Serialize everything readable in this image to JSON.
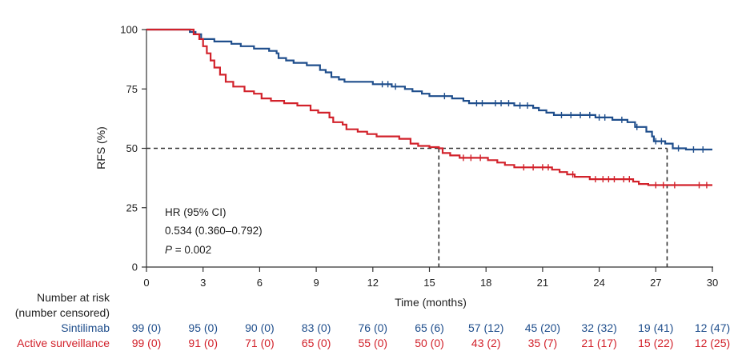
{
  "chart_data": {
    "type": "line",
    "subtype": "kaplan-meier",
    "title": "",
    "xlabel": "Time (months)",
    "ylabel": "RFS (%)",
    "xlim": [
      0,
      30
    ],
    "ylim": [
      0,
      100
    ],
    "xticks": [
      0,
      3,
      6,
      9,
      12,
      15,
      18,
      21,
      24,
      27,
      30
    ],
    "yticks": [
      0,
      25,
      50,
      75,
      100
    ],
    "grid": false,
    "median_reference_line": {
      "y": 50,
      "x": [
        15.5,
        27.6
      ]
    },
    "series": [
      {
        "name": "Sintilimab",
        "color": "#1f4e8c",
        "steps": [
          [
            0,
            100
          ],
          [
            2.0,
            100
          ],
          [
            2.3,
            99
          ],
          [
            2.6,
            98
          ],
          [
            2.9,
            96
          ],
          [
            3.6,
            95
          ],
          [
            4.5,
            94
          ],
          [
            5.0,
            93
          ],
          [
            5.7,
            92
          ],
          [
            6.5,
            91
          ],
          [
            6.9,
            90
          ],
          [
            7.0,
            88
          ],
          [
            7.4,
            87
          ],
          [
            7.8,
            86
          ],
          [
            8.5,
            85
          ],
          [
            9.2,
            83
          ],
          [
            9.5,
            82
          ],
          [
            9.8,
            80
          ],
          [
            10.2,
            79
          ],
          [
            10.5,
            78
          ],
          [
            12.0,
            77
          ],
          [
            13.0,
            76
          ],
          [
            13.7,
            75
          ],
          [
            14.1,
            74
          ],
          [
            14.6,
            73
          ],
          [
            15.0,
            72
          ],
          [
            16.2,
            71
          ],
          [
            16.8,
            70
          ],
          [
            17.1,
            69
          ],
          [
            19.5,
            68
          ],
          [
            20.5,
            67
          ],
          [
            20.8,
            66
          ],
          [
            21.2,
            65
          ],
          [
            21.6,
            64
          ],
          [
            23.8,
            63
          ],
          [
            24.7,
            62
          ],
          [
            25.5,
            61
          ],
          [
            25.9,
            59
          ],
          [
            26.5,
            57
          ],
          [
            26.8,
            55
          ],
          [
            26.9,
            53
          ],
          [
            27.5,
            52
          ],
          [
            27.9,
            50
          ],
          [
            28.6,
            49.5
          ],
          [
            30,
            49.5
          ]
        ],
        "censor_times": [
          12.5,
          12.8,
          13.2,
          15.8,
          17.5,
          17.8,
          18.5,
          18.8,
          19.2,
          19.8,
          20.2,
          22.0,
          22.5,
          23.0,
          23.5,
          24.0,
          24.3,
          25.2,
          26.0,
          27.0,
          27.3,
          28.2,
          29.0,
          29.5
        ]
      },
      {
        "name": "Active surveillance",
        "color": "#d2222b",
        "steps": [
          [
            0,
            100
          ],
          [
            2.0,
            100
          ],
          [
            2.5,
            98
          ],
          [
            2.8,
            96
          ],
          [
            3.0,
            93
          ],
          [
            3.2,
            90
          ],
          [
            3.4,
            87
          ],
          [
            3.6,
            84
          ],
          [
            3.9,
            81
          ],
          [
            4.2,
            78
          ],
          [
            4.6,
            76
          ],
          [
            5.2,
            74
          ],
          [
            5.7,
            73
          ],
          [
            6.1,
            71
          ],
          [
            6.6,
            70
          ],
          [
            7.3,
            69
          ],
          [
            8.0,
            68
          ],
          [
            8.7,
            66
          ],
          [
            9.1,
            65
          ],
          [
            9.7,
            63
          ],
          [
            9.9,
            61
          ],
          [
            10.4,
            60
          ],
          [
            10.6,
            58
          ],
          [
            11.2,
            57
          ],
          [
            11.7,
            56
          ],
          [
            12.2,
            55
          ],
          [
            13.4,
            54
          ],
          [
            14.0,
            52
          ],
          [
            14.4,
            51
          ],
          [
            15.0,
            50.5
          ],
          [
            15.5,
            50
          ],
          [
            15.7,
            48
          ],
          [
            16.1,
            47
          ],
          [
            16.6,
            46
          ],
          [
            18.1,
            45
          ],
          [
            18.6,
            44
          ],
          [
            19.0,
            43
          ],
          [
            19.5,
            42
          ],
          [
            21.5,
            41
          ],
          [
            21.9,
            40
          ],
          [
            22.3,
            39
          ],
          [
            22.7,
            38
          ],
          [
            23.5,
            37
          ],
          [
            25.8,
            36
          ],
          [
            26.1,
            35
          ],
          [
            26.6,
            34.5
          ],
          [
            30,
            34.5
          ]
        ],
        "censor_times": [
          16.8,
          17.2,
          17.7,
          20.0,
          20.5,
          21.0,
          21.3,
          22.6,
          23.8,
          24.2,
          24.5,
          24.8,
          25.3,
          25.6,
          27.0,
          27.4,
          28.0,
          29.3,
          29.7
        ]
      }
    ],
    "annotation": {
      "line1": "HR (95% CI)",
      "line2": "0.534 (0.360–0.792)",
      "p_label": "P",
      "p_value": " = 0.002"
    }
  },
  "risk_table": {
    "heading_line1": "Number at risk",
    "heading_line2": "(number censored)",
    "times": [
      0,
      3,
      6,
      9,
      12,
      15,
      18,
      21,
      24,
      27,
      30
    ],
    "rows": [
      {
        "label": "Sintilimab",
        "color": "#1f4e8c",
        "values": [
          "99 (0)",
          "95 (0)",
          "90 (0)",
          "83 (0)",
          "76 (0)",
          "65 (6)",
          "57 (12)",
          "45 (20)",
          "32 (32)",
          "19 (41)",
          "12 (47)"
        ]
      },
      {
        "label": "Active surveillance",
        "color": "#d2222b",
        "values": [
          "99 (0)",
          "91 (0)",
          "71 (0)",
          "65 (0)",
          "55 (0)",
          "50 (0)",
          "43 (2)",
          "35 (7)",
          "21 (17)",
          "15 (22)",
          "12 (25)"
        ]
      }
    ]
  }
}
